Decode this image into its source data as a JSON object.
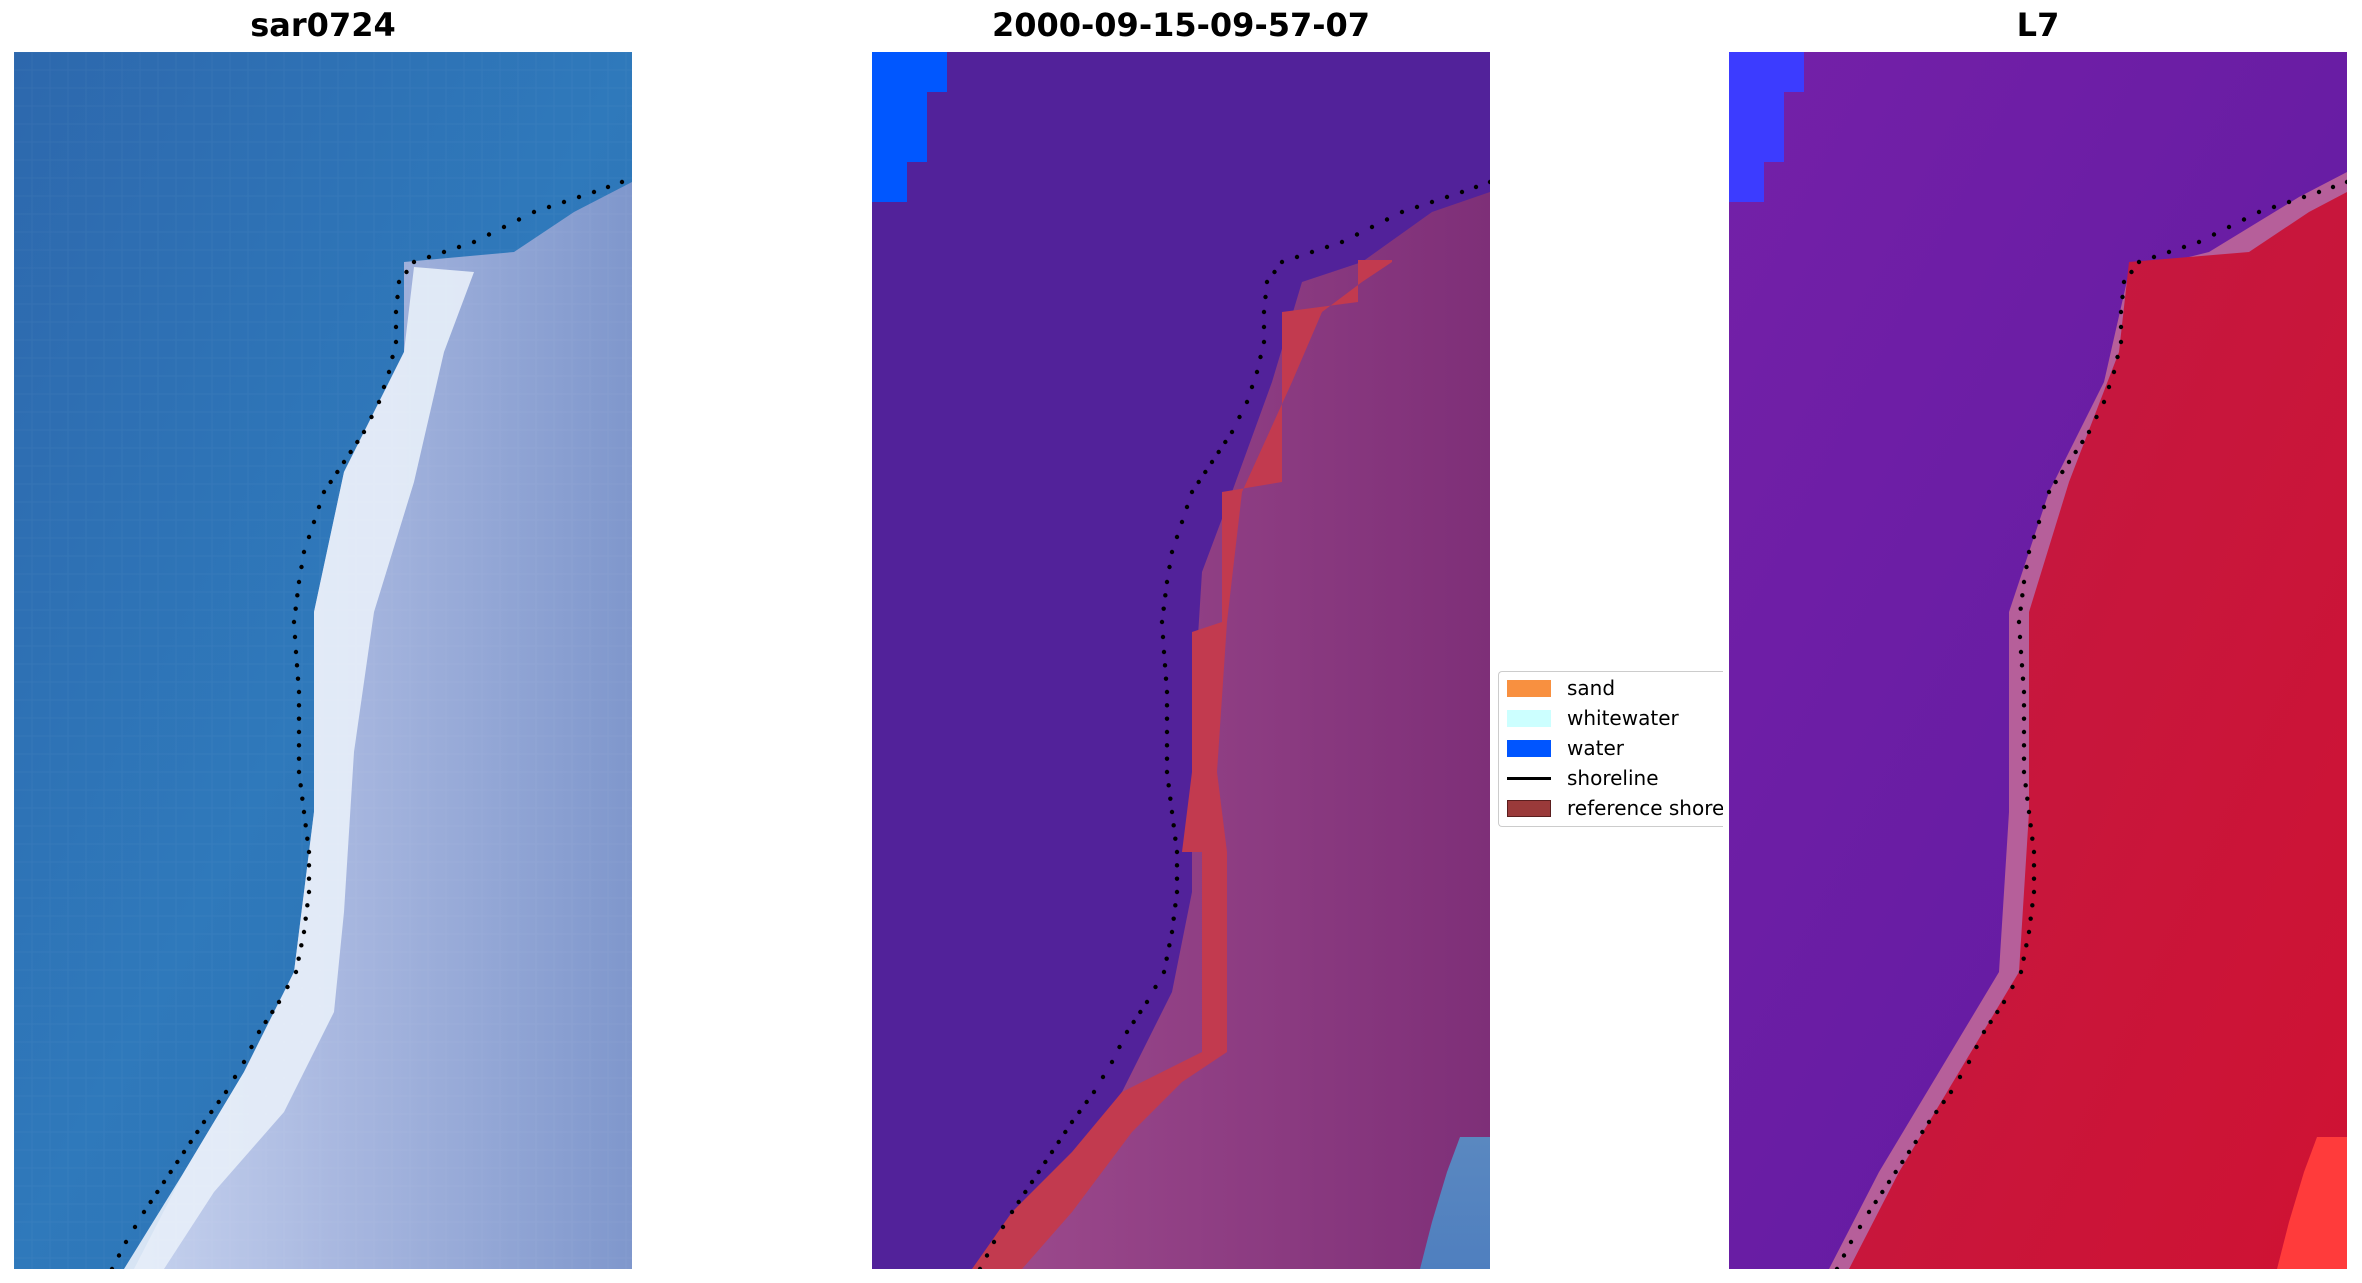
{
  "panels": {
    "rgb": {
      "title": "sar0724"
    },
    "classified": {
      "title": "2000-09-15-09-57-07"
    },
    "mndwi": {
      "title": "L7"
    }
  },
  "legend": {
    "items": [
      {
        "label": "sand",
        "color": "#f89040",
        "kind": "patch"
      },
      {
        "label": "whitewater",
        "color": "#ccffff",
        "kind": "patch"
      },
      {
        "label": "water",
        "color": "#0055ff",
        "kind": "patch"
      },
      {
        "label": "shoreline",
        "color": "#000000",
        "kind": "line"
      },
      {
        "label": "reference shoreline",
        "color": "#9a3a3a",
        "kind": "patch"
      }
    ]
  },
  "colors": {
    "ocean_rgb": "#2f72b4",
    "beach_rgb": "#9fb0dc",
    "surf_rgb": "#e8f0f8",
    "class_water": "#52229a",
    "class_land": "#8c3b7f",
    "class_sand_edge": "#c23a4f",
    "class_water_patch": "#0057ff",
    "mndwi_water": "#6a1aa6",
    "mndwi_land": "#c8163a"
  }
}
